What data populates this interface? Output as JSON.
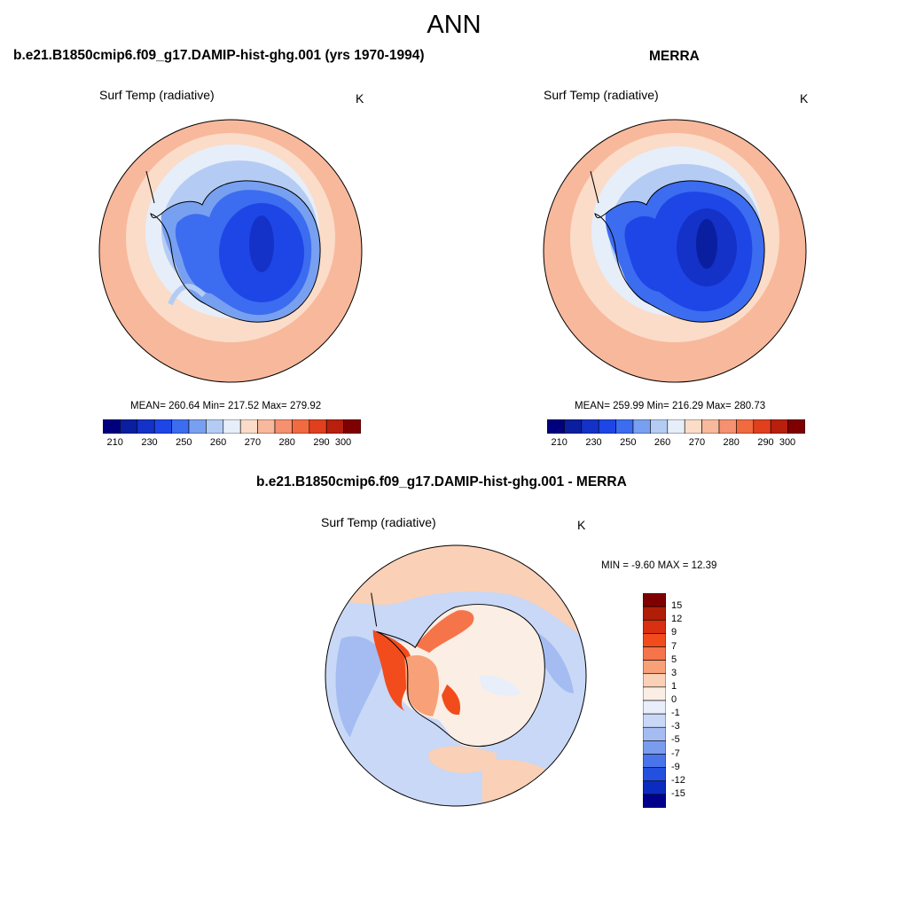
{
  "header": {
    "title": "ANN"
  },
  "panels": [
    {
      "title": "b.e21.B1850cmip6.f09_g17.DAMIP-hist-ghg.001 (yrs 1970-1994)",
      "variable": "Surf Temp (radiative)",
      "units": "K",
      "stats": "MEAN= 260.64  Min= 217.52  Max= 279.92"
    },
    {
      "title": "MERRA",
      "variable": "Surf Temp (radiative)",
      "units": "K",
      "stats": "MEAN= 259.99  Min= 216.29  Max= 280.73"
    },
    {
      "title": "b.e21.B1850cmip6.f09_g17.DAMIP-hist-ghg.001 - MERRA",
      "variable": "Surf Temp (radiative)",
      "units": "K",
      "stats": "MIN =  -9.60 MAX =  12.39"
    }
  ],
  "colorbars": {
    "absolute": {
      "colors": [
        "#00007f",
        "#0a1fa0",
        "#1432c8",
        "#1e46e6",
        "#3c6cf0",
        "#78a0f0",
        "#b4ccf4",
        "#e6eefa",
        "#fadcc8",
        "#f8b89c",
        "#f59070",
        "#f26a40",
        "#e0401e",
        "#b8200e",
        "#7f0000"
      ],
      "ticks": [
        "210",
        "230",
        "250",
        "260",
        "270",
        "280",
        "290",
        "300"
      ]
    },
    "difference": {
      "colors": [
        "#7f0000",
        "#b01e08",
        "#d83010",
        "#f24c1c",
        "#f6744a",
        "#f8a078",
        "#fad0b6",
        "#fbeee4",
        "#e8eefa",
        "#c8d8f6",
        "#a4bcf2",
        "#7a9cee",
        "#4a74ea",
        "#2450e0",
        "#0c2cc0",
        "#00008c"
      ],
      "ticks": [
        "15",
        "12",
        "9",
        "7",
        "5",
        "3",
        "1",
        "0",
        "-1",
        "-3",
        "-5",
        "-7",
        "-9",
        "-12",
        "-15"
      ]
    }
  },
  "map_data": {
    "projection": "south polar stereographic",
    "region": "Antarctica and Southern Ocean",
    "panel_1": {
      "mean": 260.64,
      "min": 217.52,
      "max": 279.92,
      "units": "K"
    },
    "panel_2": {
      "mean": 259.99,
      "min": 216.29,
      "max": 280.73,
      "units": "K"
    },
    "panel_3": {
      "min": -9.6,
      "max": 12.39,
      "units": "K"
    }
  }
}
